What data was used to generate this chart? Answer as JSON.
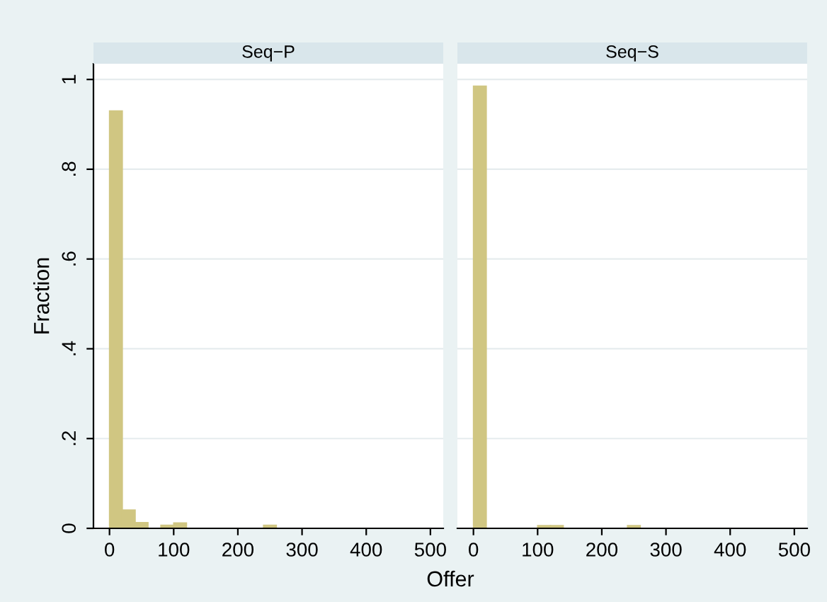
{
  "chart_data": [
    {
      "type": "histogram",
      "title": "Seq−P",
      "ylabel": "Fraction",
      "xlabel": "Offer",
      "color": "#d0c682",
      "bins": [
        0,
        20,
        40,
        60,
        80,
        100,
        120,
        140,
        160,
        180,
        200,
        220,
        240,
        260
      ],
      "values": [
        0.93,
        0.041,
        0.013,
        0,
        0.007,
        0.012,
        0,
        0,
        0,
        0,
        0,
        0,
        0.007
      ],
      "xlim": [
        -25,
        520
      ],
      "xticks": [
        0,
        100,
        200,
        300,
        400,
        500
      ],
      "ylim": [
        0,
        1.035
      ],
      "yticks": [
        {
          "value": 0,
          "label": "0"
        },
        {
          "value": 0.2,
          "label": ".2"
        },
        {
          "value": 0.4,
          "label": ".4"
        },
        {
          "value": 0.6,
          "label": ".6"
        },
        {
          "value": 0.8,
          "label": ".8"
        },
        {
          "value": 1,
          "label": "1"
        }
      ],
      "grid": "y"
    },
    {
      "type": "histogram",
      "title": "Seq−S",
      "color": "#d0c682",
      "bins": [
        0,
        20,
        40,
        60,
        80,
        100,
        120,
        140,
        160,
        180,
        200,
        220,
        240,
        260
      ],
      "values": [
        0.985,
        0,
        0,
        0,
        0,
        0.006,
        0.006,
        0,
        0,
        0,
        0,
        0,
        0.006
      ],
      "xlim": [
        -25,
        520
      ],
      "xticks": [
        0,
        100,
        200,
        300,
        400,
        500
      ],
      "ylim": [
        0,
        1.035
      ],
      "yticks": [
        {
          "value": 0,
          "label": null
        },
        {
          "value": 0.2,
          "label": null
        },
        {
          "value": 0.4,
          "label": null
        },
        {
          "value": 0.6,
          "label": null
        },
        {
          "value": 0.8,
          "label": null
        },
        {
          "value": 1,
          "label": null
        }
      ],
      "grid": "y",
      "tick_labels": "x"
    }
  ]
}
